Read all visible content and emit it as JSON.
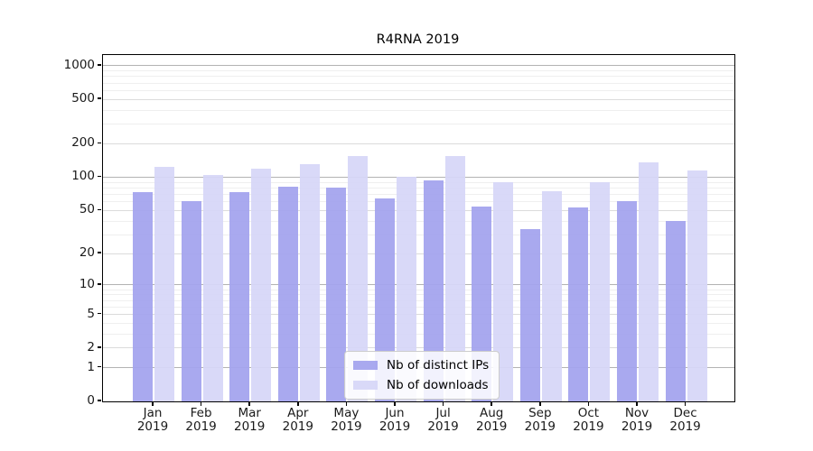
{
  "chart_data": {
    "type": "bar",
    "title": "R4RNA 2019",
    "xlabel": "",
    "ylabel": "",
    "yscale": "symlog-log10(1+v)",
    "ylim": [
      0,
      1240
    ],
    "grid": "horizontal",
    "legend_position": "bottom-center-inside",
    "y_ticks": [
      0,
      1,
      2,
      5,
      10,
      20,
      50,
      100,
      200,
      500,
      1000
    ],
    "categories": [
      "Jan",
      "Feb",
      "Mar",
      "Apr",
      "May",
      "Jun",
      "Jul",
      "Aug",
      "Sep",
      "Oct",
      "Nov",
      "Dec"
    ],
    "year_label": "2019",
    "series": [
      {
        "name": "Nb of distinct IPs",
        "key": "distinct-ips",
        "color": "#a3a3ee",
        "values": [
          73,
          61,
          73,
          82,
          81,
          64,
          94,
          54,
          34,
          53,
          61,
          40
        ]
      },
      {
        "name": "Nb of downloads",
        "key": "downloads",
        "color": "#d6d6f7",
        "values": [
          125,
          104,
          119,
          131,
          154,
          101,
          154,
          90,
          75,
          90,
          136,
          114
        ]
      }
    ]
  }
}
